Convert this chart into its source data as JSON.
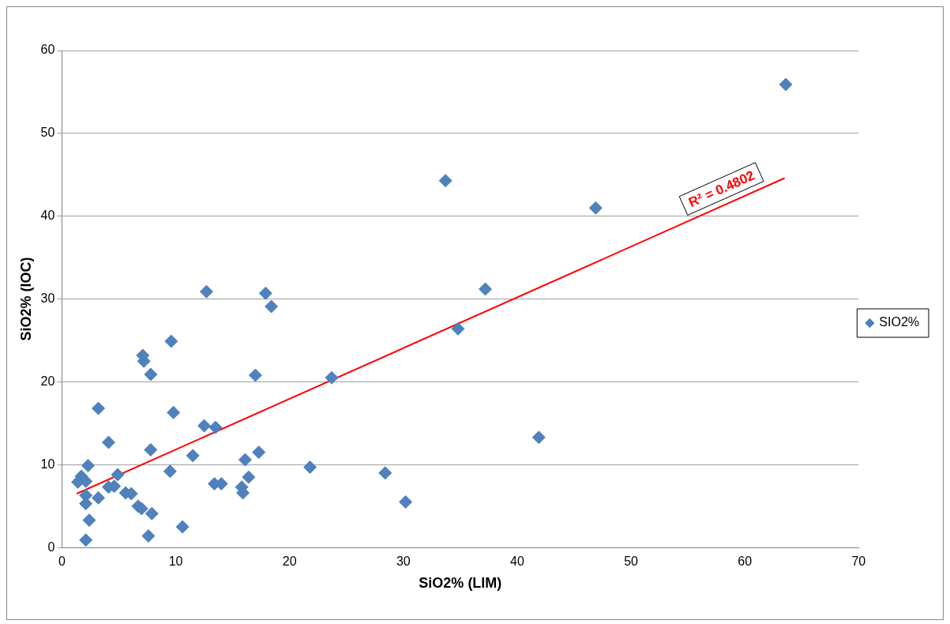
{
  "chart_data": {
    "type": "scatter",
    "xlabel": "SiO2% (LIM)",
    "ylabel": "SiO2% (IOC)",
    "xlim": [
      0,
      70
    ],
    "xticks": [
      0,
      10,
      20,
      30,
      40,
      50,
      60,
      70
    ],
    "ylim": [
      0,
      60
    ],
    "yticks": [
      0,
      10,
      20,
      30,
      40,
      50,
      60
    ],
    "grid": "y",
    "legend": "right",
    "annotations": [
      "R² = 0.4802"
    ],
    "series": [
      {
        "name": "SIO2%",
        "color": "#4f81bd",
        "marker": "diamond",
        "x": [
          1.4,
          1.7,
          2.1,
          2.3,
          2.1,
          2.1,
          2.4,
          2.1,
          3.2,
          3.2,
          4.1,
          4.1,
          4.6,
          4.9,
          5.6,
          6.1,
          6.7,
          7.0,
          7.1,
          7.2,
          7.8,
          7.8,
          7.6,
          7.9,
          9.5,
          9.6,
          9.8,
          10.6,
          11.5,
          12.5,
          12.7,
          13.5,
          13.4,
          14.0,
          15.8,
          15.9,
          16.1,
          16.4,
          17.0,
          17.3,
          17.9,
          18.4,
          21.8,
          23.7,
          28.4,
          30.2,
          33.7,
          34.8,
          37.2,
          41.9,
          46.9,
          63.6
        ],
        "values": [
          7.9,
          8.6,
          8.0,
          9.9,
          6.3,
          5.3,
          3.3,
          0.9,
          16.8,
          6.0,
          12.7,
          7.3,
          7.4,
          8.8,
          6.6,
          6.5,
          5.0,
          4.7,
          23.2,
          22.5,
          20.9,
          11.8,
          1.4,
          4.1,
          9.2,
          24.9,
          16.3,
          2.5,
          11.1,
          14.7,
          30.9,
          14.5,
          7.7,
          7.7,
          7.3,
          6.6,
          10.6,
          8.5,
          20.8,
          11.5,
          30.7,
          29.1,
          9.7,
          20.5,
          9.0,
          5.5,
          44.3,
          26.4,
          31.2,
          13.3,
          41.0,
          55.9
        ]
      },
      {
        "type": "line",
        "color": "#ff0000",
        "marker": "none",
        "line_style": "solid",
        "x": [
          1.3,
          63.5
        ],
        "values": [
          6.5,
          44.6
        ]
      }
    ]
  }
}
